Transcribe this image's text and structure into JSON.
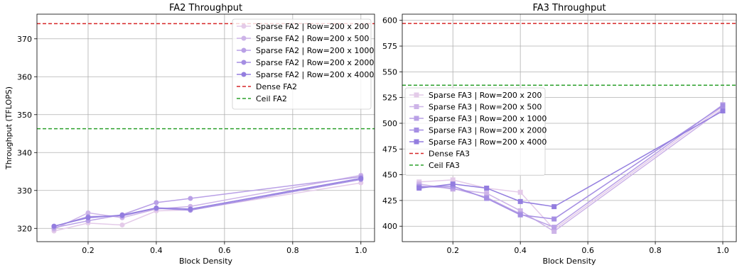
{
  "chart_data": [
    {
      "type": "line",
      "title": "FA2 Throughput",
      "xlabel": "Block Density",
      "ylabel": "Throughput (TFLOPS)",
      "xlim": [
        0.05,
        1.04
      ],
      "ylim": [
        316.5,
        376.5
      ],
      "xticks": [
        0.2,
        0.4,
        0.6,
        0.8,
        1.0
      ],
      "xtick_labels": [
        "0.2",
        "0.4",
        "0.6",
        "0.8",
        "1.0"
      ],
      "yticks": [
        320,
        330,
        340,
        350,
        360,
        370
      ],
      "ytick_labels": [
        "320",
        "330",
        "340",
        "350",
        "360",
        "370"
      ],
      "grid": true,
      "legend_position": "upper right",
      "x": [
        0.1,
        0.2,
        0.3,
        0.4,
        0.5,
        1.0
      ],
      "marker": "circle",
      "series": [
        {
          "name": "Sparse FA2 | Row=200 x 200",
          "color": "#e4cbe9",
          "values": [
            319.3,
            321.4,
            320.9,
            324.6,
            324.9,
            332.0
          ]
        },
        {
          "name": "Sparse FA2 | Row=200 x 500",
          "color": "#cdb4e8",
          "values": [
            319.8,
            324.1,
            322.8,
            325.1,
            325.8,
            334.0
          ]
        },
        {
          "name": "Sparse FA2 | Row=200 x 1000",
          "color": "#b9a0e6",
          "values": [
            320.2,
            322.0,
            323.6,
            326.8,
            327.9,
            333.6
          ]
        },
        {
          "name": "Sparse FA2 | Row=200 x 2000",
          "color": "#a58ee3",
          "values": [
            320.5,
            323.1,
            323.3,
            325.3,
            324.8,
            332.9
          ]
        },
        {
          "name": "Sparse FA2 | Row=200 x 4000",
          "color": "#937ddf",
          "values": [
            320.6,
            322.8,
            323.5,
            325.4,
            325.1,
            333.2
          ]
        }
      ],
      "reference_lines": [
        {
          "name": "Dense FA2",
          "color": "#d62728",
          "value": 374.0
        },
        {
          "name": "Ceil FA2",
          "color": "#2ca02c",
          "value": 346.3
        }
      ]
    },
    {
      "type": "line",
      "title": "FA3 Throughput",
      "xlabel": "Block Density",
      "ylabel": "",
      "xlim": [
        0.05,
        1.04
      ],
      "ylim": [
        385,
        606
      ],
      "xticks": [
        0.2,
        0.4,
        0.6,
        0.8,
        1.0
      ],
      "xtick_labels": [
        "0.2",
        "0.4",
        "0.6",
        "0.8",
        "1.0"
      ],
      "yticks": [
        400,
        425,
        450,
        475,
        500,
        525,
        550,
        575,
        600
      ],
      "ytick_labels": [
        "400",
        "425",
        "450",
        "475",
        "500",
        "525",
        "550",
        "575",
        "600"
      ],
      "grid": true,
      "legend_position": "center left",
      "x": [
        0.1,
        0.2,
        0.3,
        0.4,
        0.5,
        1.0
      ],
      "marker": "square",
      "series": [
        {
          "name": "Sparse FA3 | Row=200 x 200",
          "color": "#e4cbe9",
          "values": [
            443,
            445,
            437,
            433,
            397,
            516
          ]
        },
        {
          "name": "Sparse FA3 | Row=200 x 500",
          "color": "#cdb4e8",
          "values": [
            441,
            436,
            432,
            415,
            395,
            514
          ]
        },
        {
          "name": "Sparse FA3 | Row=200 x 1000",
          "color": "#b9a0e6",
          "values": [
            439,
            437,
            428,
            412,
            399,
            518
          ]
        },
        {
          "name": "Sparse FA3 | Row=200 x 2000",
          "color": "#a58ee3",
          "values": [
            438,
            439,
            427,
            411,
            407,
            517
          ]
        },
        {
          "name": "Sparse FA3 | Row=200 x 4000",
          "color": "#937ddf",
          "values": [
            437,
            441,
            437,
            424,
            419,
            512
          ]
        }
      ],
      "reference_lines": [
        {
          "name": "Dense FA3",
          "color": "#d62728",
          "value": 597
        },
        {
          "name": "Ceil FA3",
          "color": "#2ca02c",
          "value": 537
        }
      ]
    }
  ]
}
